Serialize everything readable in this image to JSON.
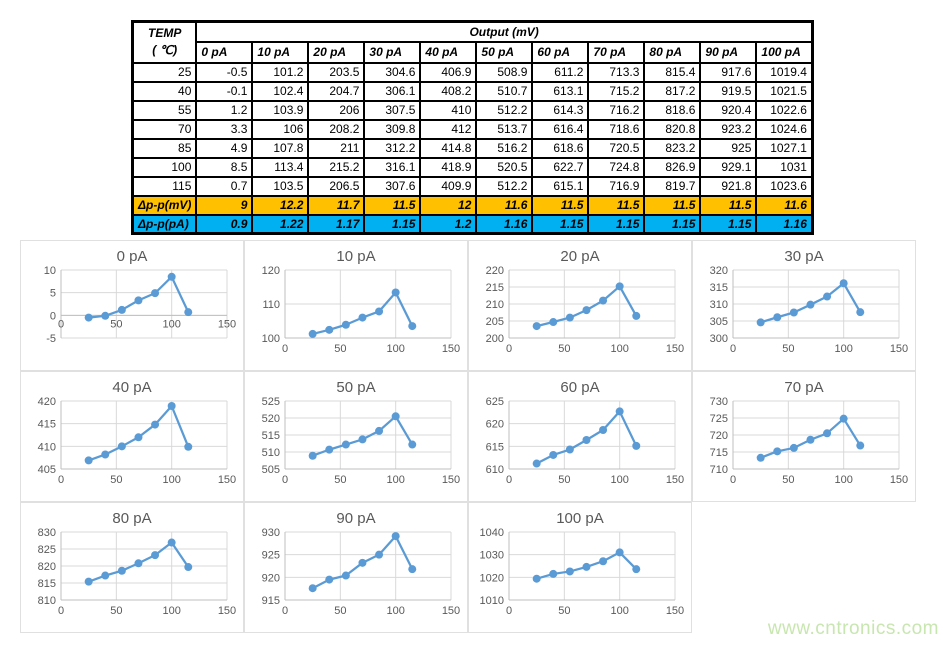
{
  "page": {
    "watermark": "www.cntronics.com"
  },
  "table": {
    "corner_title": "TEMP",
    "corner_subtitle": "( ℃)",
    "output_header": "Output (mV)",
    "column_headers": [
      "0 pA",
      "10 pA",
      "20 pA",
      "30 pA",
      "40 pA",
      "50 pA",
      "60 pA",
      "70 pA",
      "80 pA",
      "90 pA",
      "100 pA"
    ],
    "rows": [
      {
        "temp": "25",
        "values": [
          "-0.5",
          "101.2",
          "203.5",
          "304.6",
          "406.9",
          "508.9",
          "611.2",
          "713.3",
          "815.4",
          "917.6",
          "1019.4"
        ]
      },
      {
        "temp": "40",
        "values": [
          "-0.1",
          "102.4",
          "204.7",
          "306.1",
          "408.2",
          "510.7",
          "613.1",
          "715.2",
          "817.2",
          "919.5",
          "1021.5"
        ]
      },
      {
        "temp": "55",
        "values": [
          "1.2",
          "103.9",
          "206",
          "307.5",
          "410",
          "512.2",
          "614.3",
          "716.2",
          "818.6",
          "920.4",
          "1022.6"
        ]
      },
      {
        "temp": "70",
        "values": [
          "3.3",
          "106",
          "208.2",
          "309.8",
          "412",
          "513.7",
          "616.4",
          "718.6",
          "820.8",
          "923.2",
          "1024.6"
        ]
      },
      {
        "temp": "85",
        "values": [
          "4.9",
          "107.8",
          "211",
          "312.2",
          "414.8",
          "516.2",
          "618.6",
          "720.5",
          "823.2",
          "925",
          "1027.1"
        ]
      },
      {
        "temp": "100",
        "values": [
          "8.5",
          "113.4",
          "215.2",
          "316.1",
          "418.9",
          "520.5",
          "622.7",
          "724.8",
          "826.9",
          "929.1",
          "1031"
        ]
      },
      {
        "temp": "115",
        "values": [
          "0.7",
          "103.5",
          "206.5",
          "307.6",
          "409.9",
          "512.2",
          "615.1",
          "716.9",
          "819.7",
          "921.8",
          "1023.6"
        ]
      }
    ],
    "delta_mv": {
      "label": "Δp-p(mV)",
      "values": [
        "9",
        "12.2",
        "11.7",
        "11.5",
        "12",
        "11.6",
        "11.5",
        "11.5",
        "11.5",
        "11.5",
        "11.6"
      ]
    },
    "delta_pa": {
      "label": "Δp-p(pA)",
      "values": [
        "0.9",
        "1.22",
        "1.17",
        "1.15",
        "1.2",
        "1.16",
        "1.15",
        "1.15",
        "1.15",
        "1.15",
        "1.16"
      ]
    },
    "colors": {
      "delta_mv_bg": "#FFC000",
      "delta_pa_bg": "#00B0F0"
    }
  },
  "chart_style": {
    "line_color": "#5B9BD5",
    "grid_color": "#d9d9d9",
    "axis_color": "#bfbfbf",
    "text_color": "#595959"
  },
  "chart_data": [
    {
      "type": "line",
      "title": "0 pA",
      "x": [
        25,
        40,
        55,
        70,
        85,
        100,
        115
      ],
      "values": [
        -0.5,
        -0.1,
        1.2,
        3.3,
        4.9,
        8.5,
        0.7
      ],
      "ylim": [
        -5,
        10
      ],
      "y_ticks": [
        -5,
        0,
        5,
        10
      ],
      "xlim": [
        0,
        150
      ],
      "x_ticks": [
        0,
        50,
        100,
        150
      ]
    },
    {
      "type": "line",
      "title": "10 pA",
      "x": [
        25,
        40,
        55,
        70,
        85,
        100,
        115
      ],
      "values": [
        101.2,
        102.4,
        103.9,
        106,
        107.8,
        113.4,
        103.5
      ],
      "ylim": [
        100,
        120
      ],
      "y_ticks": [
        100,
        110,
        120
      ],
      "xlim": [
        0,
        150
      ],
      "x_ticks": [
        0,
        50,
        100,
        150
      ]
    },
    {
      "type": "line",
      "title": "20 pA",
      "x": [
        25,
        40,
        55,
        70,
        85,
        100,
        115
      ],
      "values": [
        203.5,
        204.7,
        206,
        208.2,
        211,
        215.2,
        206.5
      ],
      "ylim": [
        200,
        220
      ],
      "y_ticks": [
        200,
        205,
        210,
        215,
        220
      ],
      "xlim": [
        0,
        150
      ],
      "x_ticks": [
        0,
        50,
        100,
        150
      ]
    },
    {
      "type": "line",
      "title": "30 pA",
      "x": [
        25,
        40,
        55,
        70,
        85,
        100,
        115
      ],
      "values": [
        304.6,
        306.1,
        307.5,
        309.8,
        312.2,
        316.1,
        307.6
      ],
      "ylim": [
        300,
        320
      ],
      "y_ticks": [
        300,
        305,
        310,
        315,
        320
      ],
      "xlim": [
        0,
        150
      ],
      "x_ticks": [
        0,
        50,
        100,
        150
      ]
    },
    {
      "type": "line",
      "title": "40 pA",
      "x": [
        25,
        40,
        55,
        70,
        85,
        100,
        115
      ],
      "values": [
        406.9,
        408.2,
        410,
        412,
        414.8,
        418.9,
        409.9
      ],
      "ylim": [
        405,
        420
      ],
      "y_ticks": [
        405,
        410,
        415,
        420
      ],
      "xlim": [
        0,
        150
      ],
      "x_ticks": [
        0,
        50,
        100,
        150
      ]
    },
    {
      "type": "line",
      "title": "50 pA",
      "x": [
        25,
        40,
        55,
        70,
        85,
        100,
        115
      ],
      "values": [
        508.9,
        510.7,
        512.2,
        513.7,
        516.2,
        520.5,
        512.2
      ],
      "ylim": [
        505,
        525
      ],
      "y_ticks": [
        505,
        510,
        515,
        520,
        525
      ],
      "xlim": [
        0,
        150
      ],
      "x_ticks": [
        0,
        50,
        100,
        150
      ]
    },
    {
      "type": "line",
      "title": "60 pA",
      "x": [
        25,
        40,
        55,
        70,
        85,
        100,
        115
      ],
      "values": [
        611.2,
        613.1,
        614.3,
        616.4,
        618.6,
        622.7,
        615.1
      ],
      "ylim": [
        610,
        625
      ],
      "y_ticks": [
        610,
        615,
        620,
        625
      ],
      "xlim": [
        0,
        150
      ],
      "x_ticks": [
        0,
        50,
        100,
        150
      ]
    },
    {
      "type": "line",
      "title": "70 pA",
      "x": [
        25,
        40,
        55,
        70,
        85,
        100,
        115
      ],
      "values": [
        713.3,
        715.2,
        716.2,
        718.6,
        720.5,
        724.8,
        716.9
      ],
      "ylim": [
        710,
        730
      ],
      "y_ticks": [
        710,
        715,
        720,
        725,
        730
      ],
      "xlim": [
        0,
        150
      ],
      "x_ticks": [
        0,
        50,
        100,
        150
      ]
    },
    {
      "type": "line",
      "title": "80 pA",
      "x": [
        25,
        40,
        55,
        70,
        85,
        100,
        115
      ],
      "values": [
        815.4,
        817.2,
        818.6,
        820.8,
        823.2,
        826.9,
        819.7
      ],
      "ylim": [
        810,
        830
      ],
      "y_ticks": [
        810,
        815,
        820,
        825,
        830
      ],
      "xlim": [
        0,
        150
      ],
      "x_ticks": [
        0,
        50,
        100,
        150
      ]
    },
    {
      "type": "line",
      "title": "90 pA",
      "x": [
        25,
        40,
        55,
        70,
        85,
        100,
        115
      ],
      "values": [
        917.6,
        919.5,
        920.4,
        923.2,
        925,
        929.1,
        921.8
      ],
      "ylim": [
        915,
        930
      ],
      "y_ticks": [
        915,
        920,
        925,
        930
      ],
      "xlim": [
        0,
        150
      ],
      "x_ticks": [
        0,
        50,
        100,
        150
      ]
    },
    {
      "type": "line",
      "title": "100 pA",
      "x": [
        25,
        40,
        55,
        70,
        85,
        100,
        115
      ],
      "values": [
        1019.4,
        1021.5,
        1022.6,
        1024.6,
        1027.1,
        1031,
        1023.6
      ],
      "ylim": [
        1010,
        1040
      ],
      "y_ticks": [
        1010,
        1020,
        1030,
        1040
      ],
      "xlim": [
        0,
        150
      ],
      "x_ticks": [
        0,
        50,
        100,
        150
      ]
    }
  ]
}
